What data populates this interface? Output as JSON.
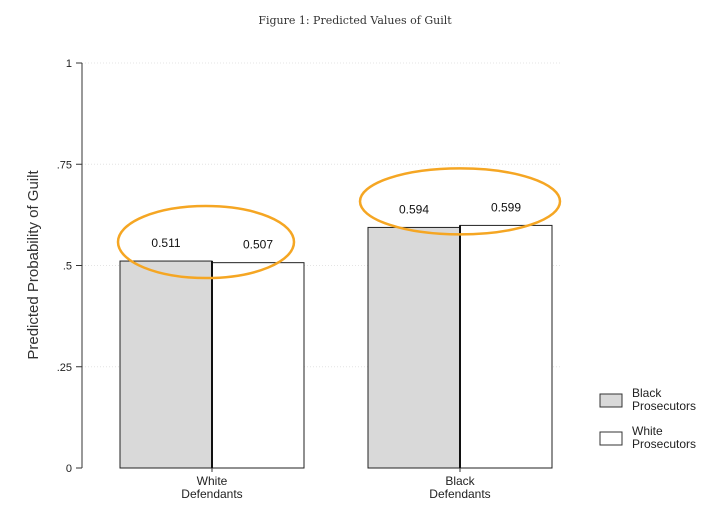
{
  "chart_data": {
    "type": "bar",
    "title": "Figure 1: Predicted Values of Guilt",
    "ylabel": "Predicted Probability of Guilt",
    "xlabel": "",
    "ylim": [
      0,
      1
    ],
    "yticks": [
      {
        "value": 0,
        "label": "0"
      },
      {
        "value": 0.25,
        "label": ".25"
      },
      {
        "value": 0.5,
        "label": ".5"
      },
      {
        "value": 0.75,
        "label": ".75"
      },
      {
        "value": 1,
        "label": "1"
      }
    ],
    "categories": [
      [
        "White",
        "Defendants"
      ],
      [
        "Black",
        "Defendants"
      ]
    ],
    "series": [
      {
        "name": [
          "Black",
          "Prosecutors"
        ],
        "color": "#d9d9d9",
        "values": [
          0.511,
          0.594
        ],
        "labels": [
          "0.511",
          "0.594"
        ]
      },
      {
        "name": [
          "White",
          "Prosecutors"
        ],
        "color": "#ffffff",
        "values": [
          0.507,
          0.599
        ],
        "labels": [
          "0.507",
          "0.599"
        ]
      }
    ],
    "grid": true,
    "legend_position": "bottom-right",
    "annotations": {
      "highlight_color": "#f5a623",
      "shape": "ellipse",
      "around": "data labels of each category"
    }
  }
}
